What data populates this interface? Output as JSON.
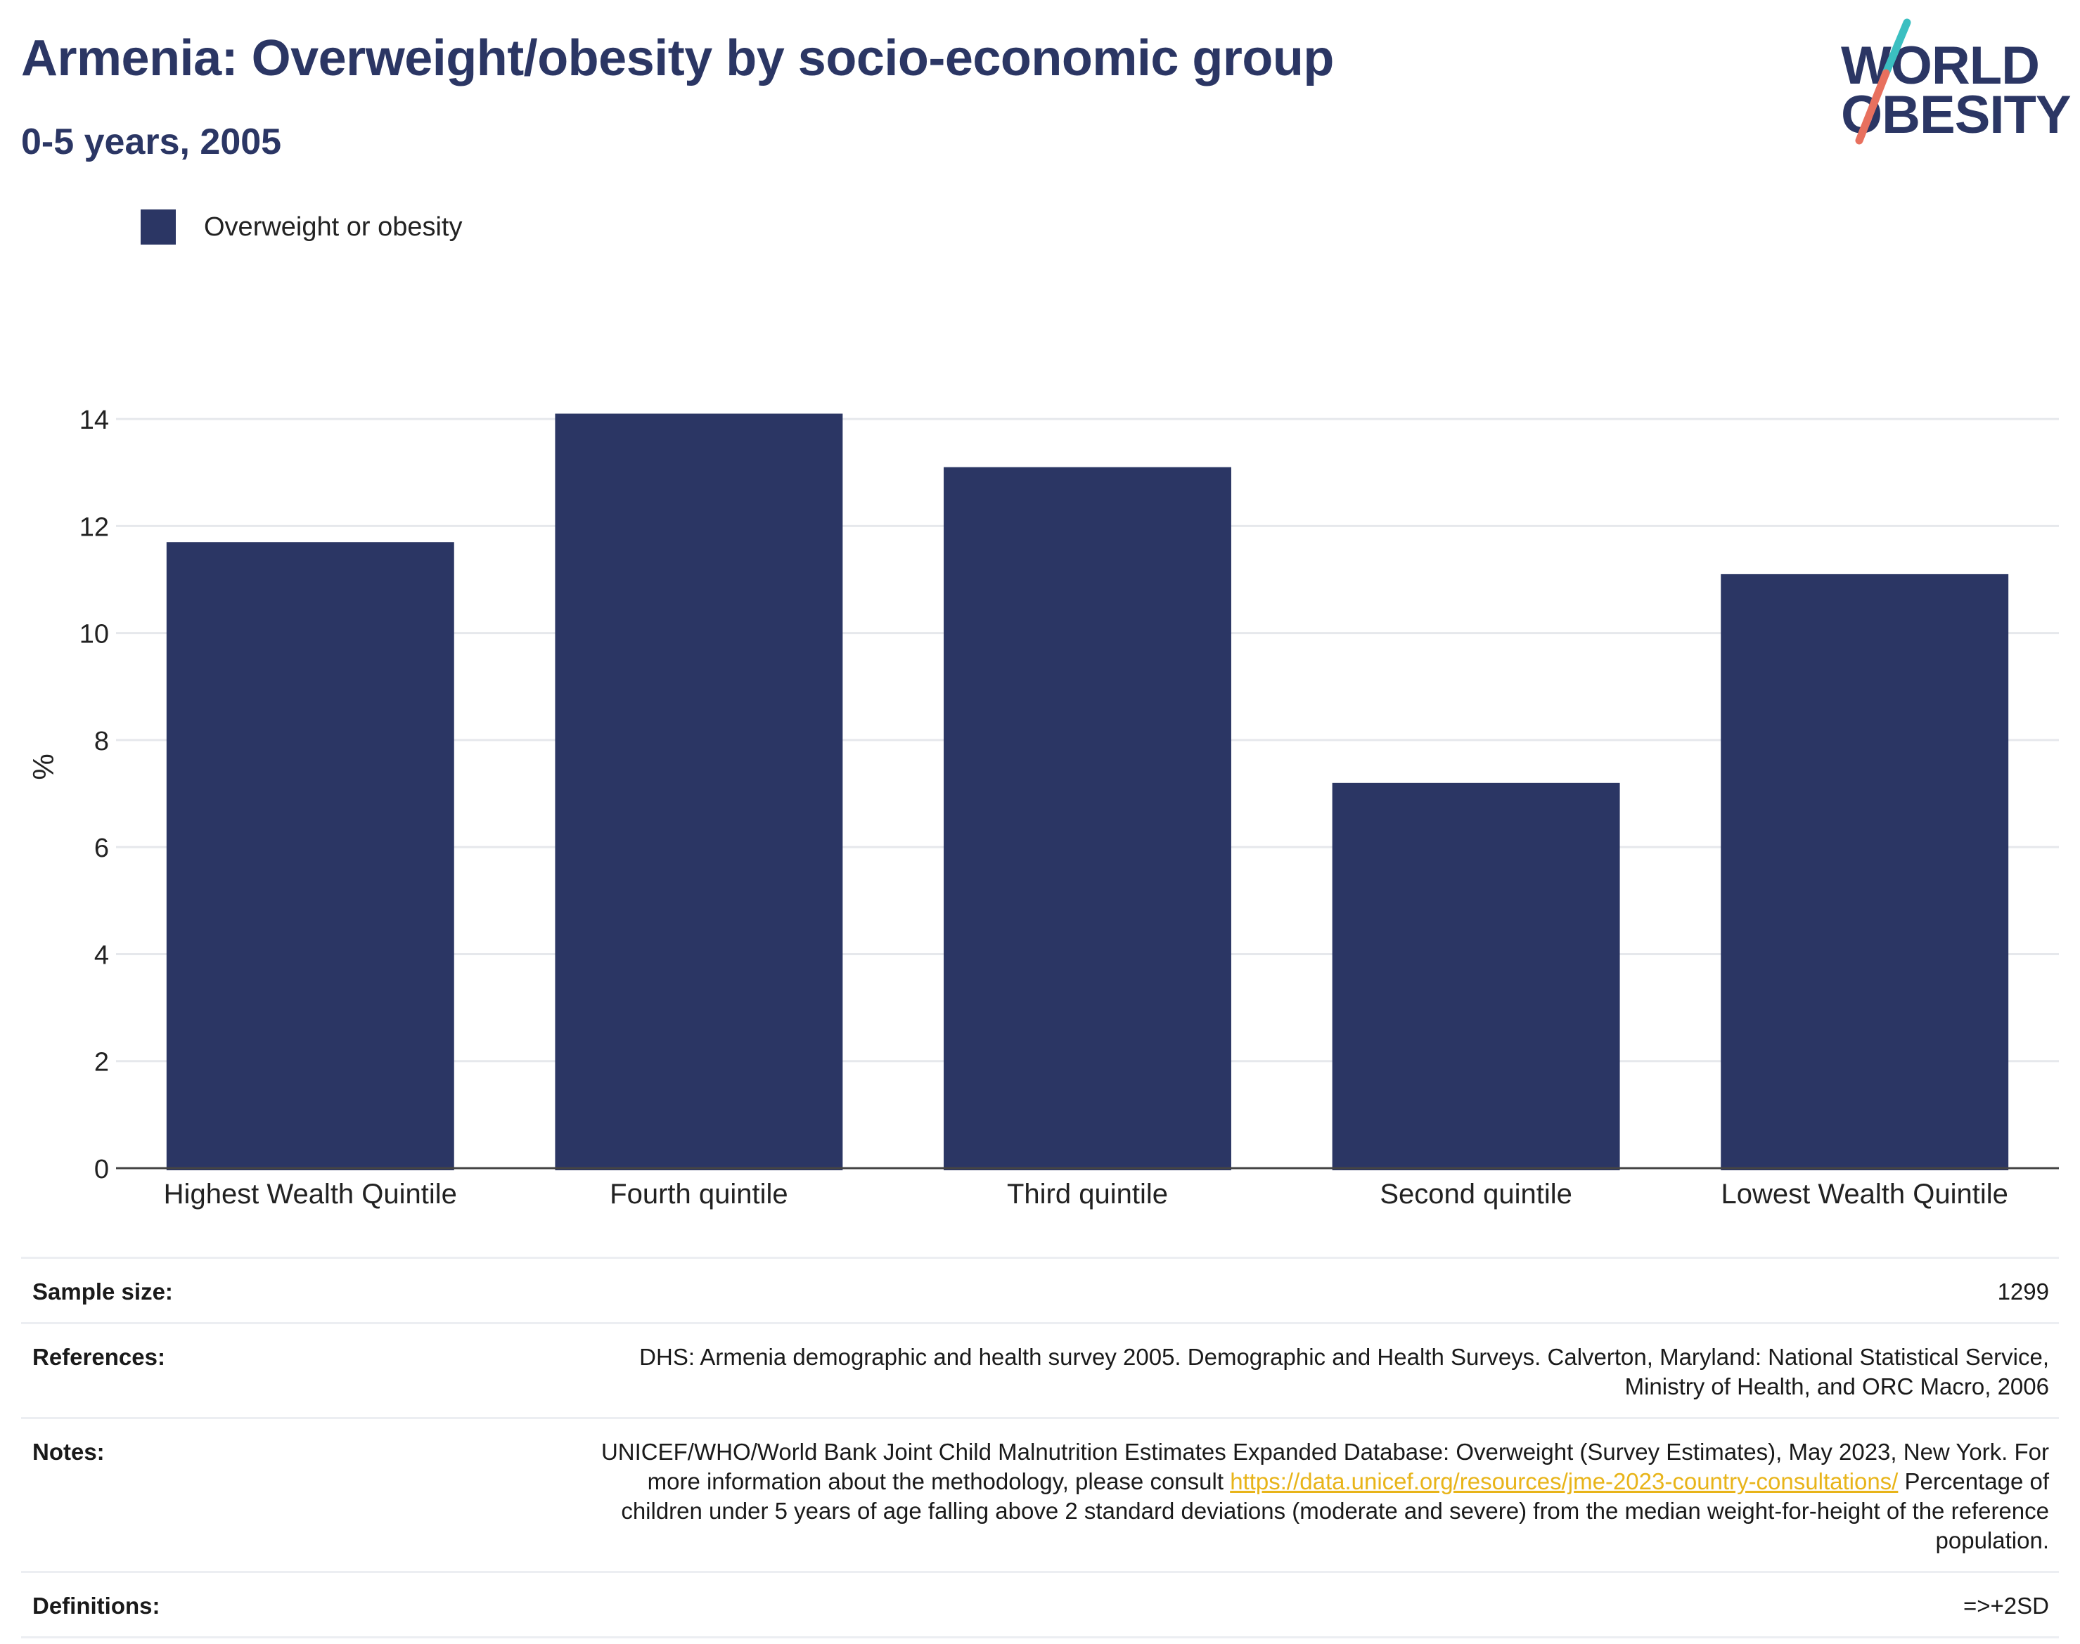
{
  "header": {
    "title": "Armenia: Overweight/obesity by socio-economic group",
    "subtitle": "0-5 years, 2005"
  },
  "logo": {
    "line1": "WORLD",
    "line2": "OBESITY",
    "colors": {
      "text": "#2b3664",
      "slash_teal": "#3bbfc1",
      "slash_coral": "#e8705e"
    }
  },
  "legend": {
    "items": [
      {
        "label": "Overweight or obesity",
        "color": "#2b3664"
      }
    ]
  },
  "chart_data": {
    "type": "bar",
    "categories": [
      "Highest Wealth Quintile",
      "Fourth quintile",
      "Third quintile",
      "Second quintile",
      "Lowest Wealth Quintile"
    ],
    "series": [
      {
        "name": "Overweight or obesity",
        "values": [
          11.7,
          14.1,
          13.1,
          7.2,
          11.1
        ],
        "color": "#2b3664"
      }
    ],
    "ylabel": "%",
    "ylim": [
      0,
      15
    ],
    "yticks": [
      0,
      2,
      4,
      6,
      8,
      10,
      12,
      14
    ],
    "grid": true,
    "legend_position": "top-left"
  },
  "info": {
    "sample_size": {
      "key": "Sample size:",
      "value": "1299"
    },
    "references": {
      "key": "References:",
      "value": "DHS: Armenia demographic and health survey 2005. Demographic and Health Surveys. Calverton, Maryland: National Statistical Service, Ministry of Health, and ORC Macro, 2006"
    },
    "notes": {
      "key": "Notes:",
      "text_before": "UNICEF/WHO/World Bank Joint Child Malnutrition Estimates Expanded Database: Overweight (Survey Estimates), May 2023, New York. For more information about the methodology, please consult",
      "link": "https://data.unicef.org/resources/jme-2023-country-consultations/",
      "text_after": "Percentage of children under 5 years of age falling above 2 standard deviations (moderate and severe) from the median weight-for-height of the reference population."
    },
    "definitions": {
      "key": "Definitions:",
      "value": "=>+2SD"
    }
  }
}
